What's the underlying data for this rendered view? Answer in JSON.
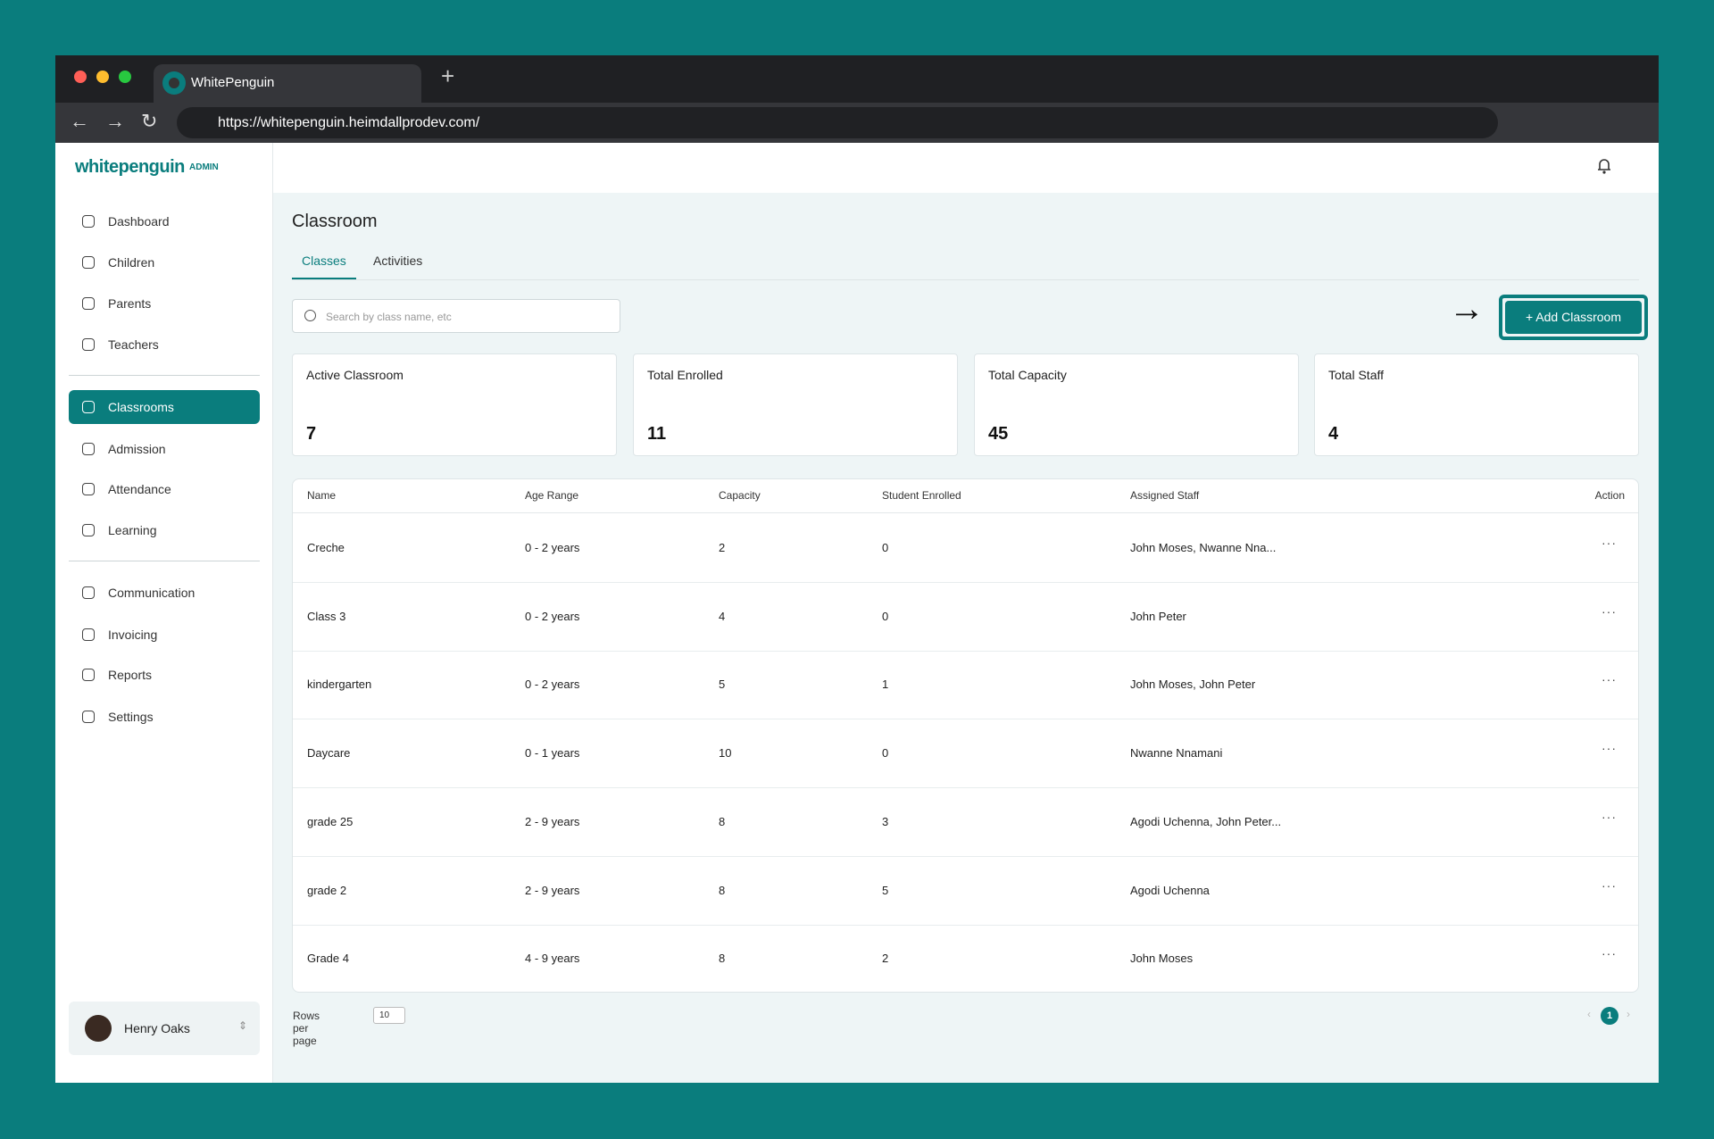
{
  "browser": {
    "tab_title": "WhitePenguin",
    "url": "https://whitepenguin.heimdallprodev.com/"
  },
  "sidebar": {
    "logo": "whitepenguin",
    "badge": "ADMIN",
    "nav": [
      "Dashboard",
      "Children",
      "Parents",
      "Teachers",
      "Classrooms",
      "Admission",
      "Attendance",
      "Learning",
      "Communication",
      "Invoicing",
      "Reports",
      "Settings"
    ],
    "active": "Classrooms",
    "user": "Henry Oaks"
  },
  "main": {
    "title": "Classroom",
    "tabs": [
      "Classes",
      "Activities"
    ],
    "search_placeholder": "Search by class name, etc",
    "button": "+ Add Classroom",
    "stats": [
      {
        "label": "Active Classroom",
        "value": 7
      },
      {
        "label": "Total Enrolled",
        "value": 11
      },
      {
        "label": "Total Capacity",
        "value": 45
      },
      {
        "label": "Total Staff",
        "value": 4
      }
    ],
    "table": {
      "columns": [
        "Name",
        "Age Range",
        "Capacity",
        "Student Enrolled",
        "Assigned Staff",
        "Action"
      ],
      "rows": [
        [
          "Creche",
          "0 - 2 years",
          2,
          0,
          "John Moses, Nwanne Nna..."
        ],
        [
          "Class 3",
          "0 - 2 years",
          4,
          0,
          "John Peter"
        ],
        [
          "kindergarten",
          "0 - 2 years",
          5,
          1,
          "John Moses, John Peter"
        ],
        [
          "Daycare",
          "0 - 1 years",
          10,
          0,
          "Nwanne Nnamani"
        ],
        [
          "grade 25",
          "2 - 9 years",
          8,
          3,
          "Agodi Uchenna, John Peter..."
        ],
        [
          "grade 2",
          "2 - 9 years",
          8,
          5,
          "Agodi Uchenna"
        ],
        [
          "Grade 4",
          "4 - 9 years",
          8,
          2,
          "John Moses"
        ]
      ]
    },
    "rows_per_page_label": "Rows per page",
    "rows_per_page": 10,
    "current_page": 1
  }
}
